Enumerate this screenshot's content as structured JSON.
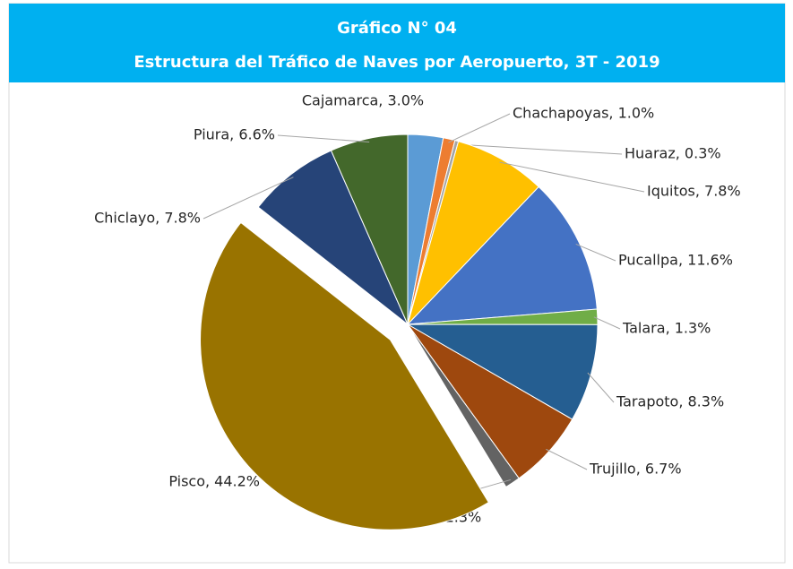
{
  "chart_data": {
    "type": "pie",
    "title": "Gráfico N° 04",
    "subtitle": "Estructura del Tráfico de Naves por Aeropuerto, 3T - 2019",
    "labels": [
      "Cajamarca, 3.0%",
      "Chachapoyas, 1.0%",
      "Huaraz, 0.3%",
      "Iquitos, 7.8%",
      "Pucallpa, 11.6%",
      "Talara, 1.3%",
      "Tarapoto, 8.3%",
      "Trujillo, 6.7%",
      "Tumbes, 1.3%",
      "Pisco, 44.2%",
      "Chiclayo, 7.8%",
      "Piura, 6.6%"
    ],
    "values": [
      3.0,
      1.0,
      0.3,
      7.8,
      11.6,
      1.3,
      8.3,
      6.7,
      1.3,
      44.2,
      7.8,
      6.6
    ],
    "colors": [
      "#5b9bd5",
      "#ed7d31",
      "#a5a5a5",
      "#ffc000",
      "#4472c4",
      "#70ad47",
      "#255e91",
      "#9e480e",
      "#636363",
      "#997300",
      "#264478",
      "#43682b"
    ],
    "explode_index": 9
  }
}
